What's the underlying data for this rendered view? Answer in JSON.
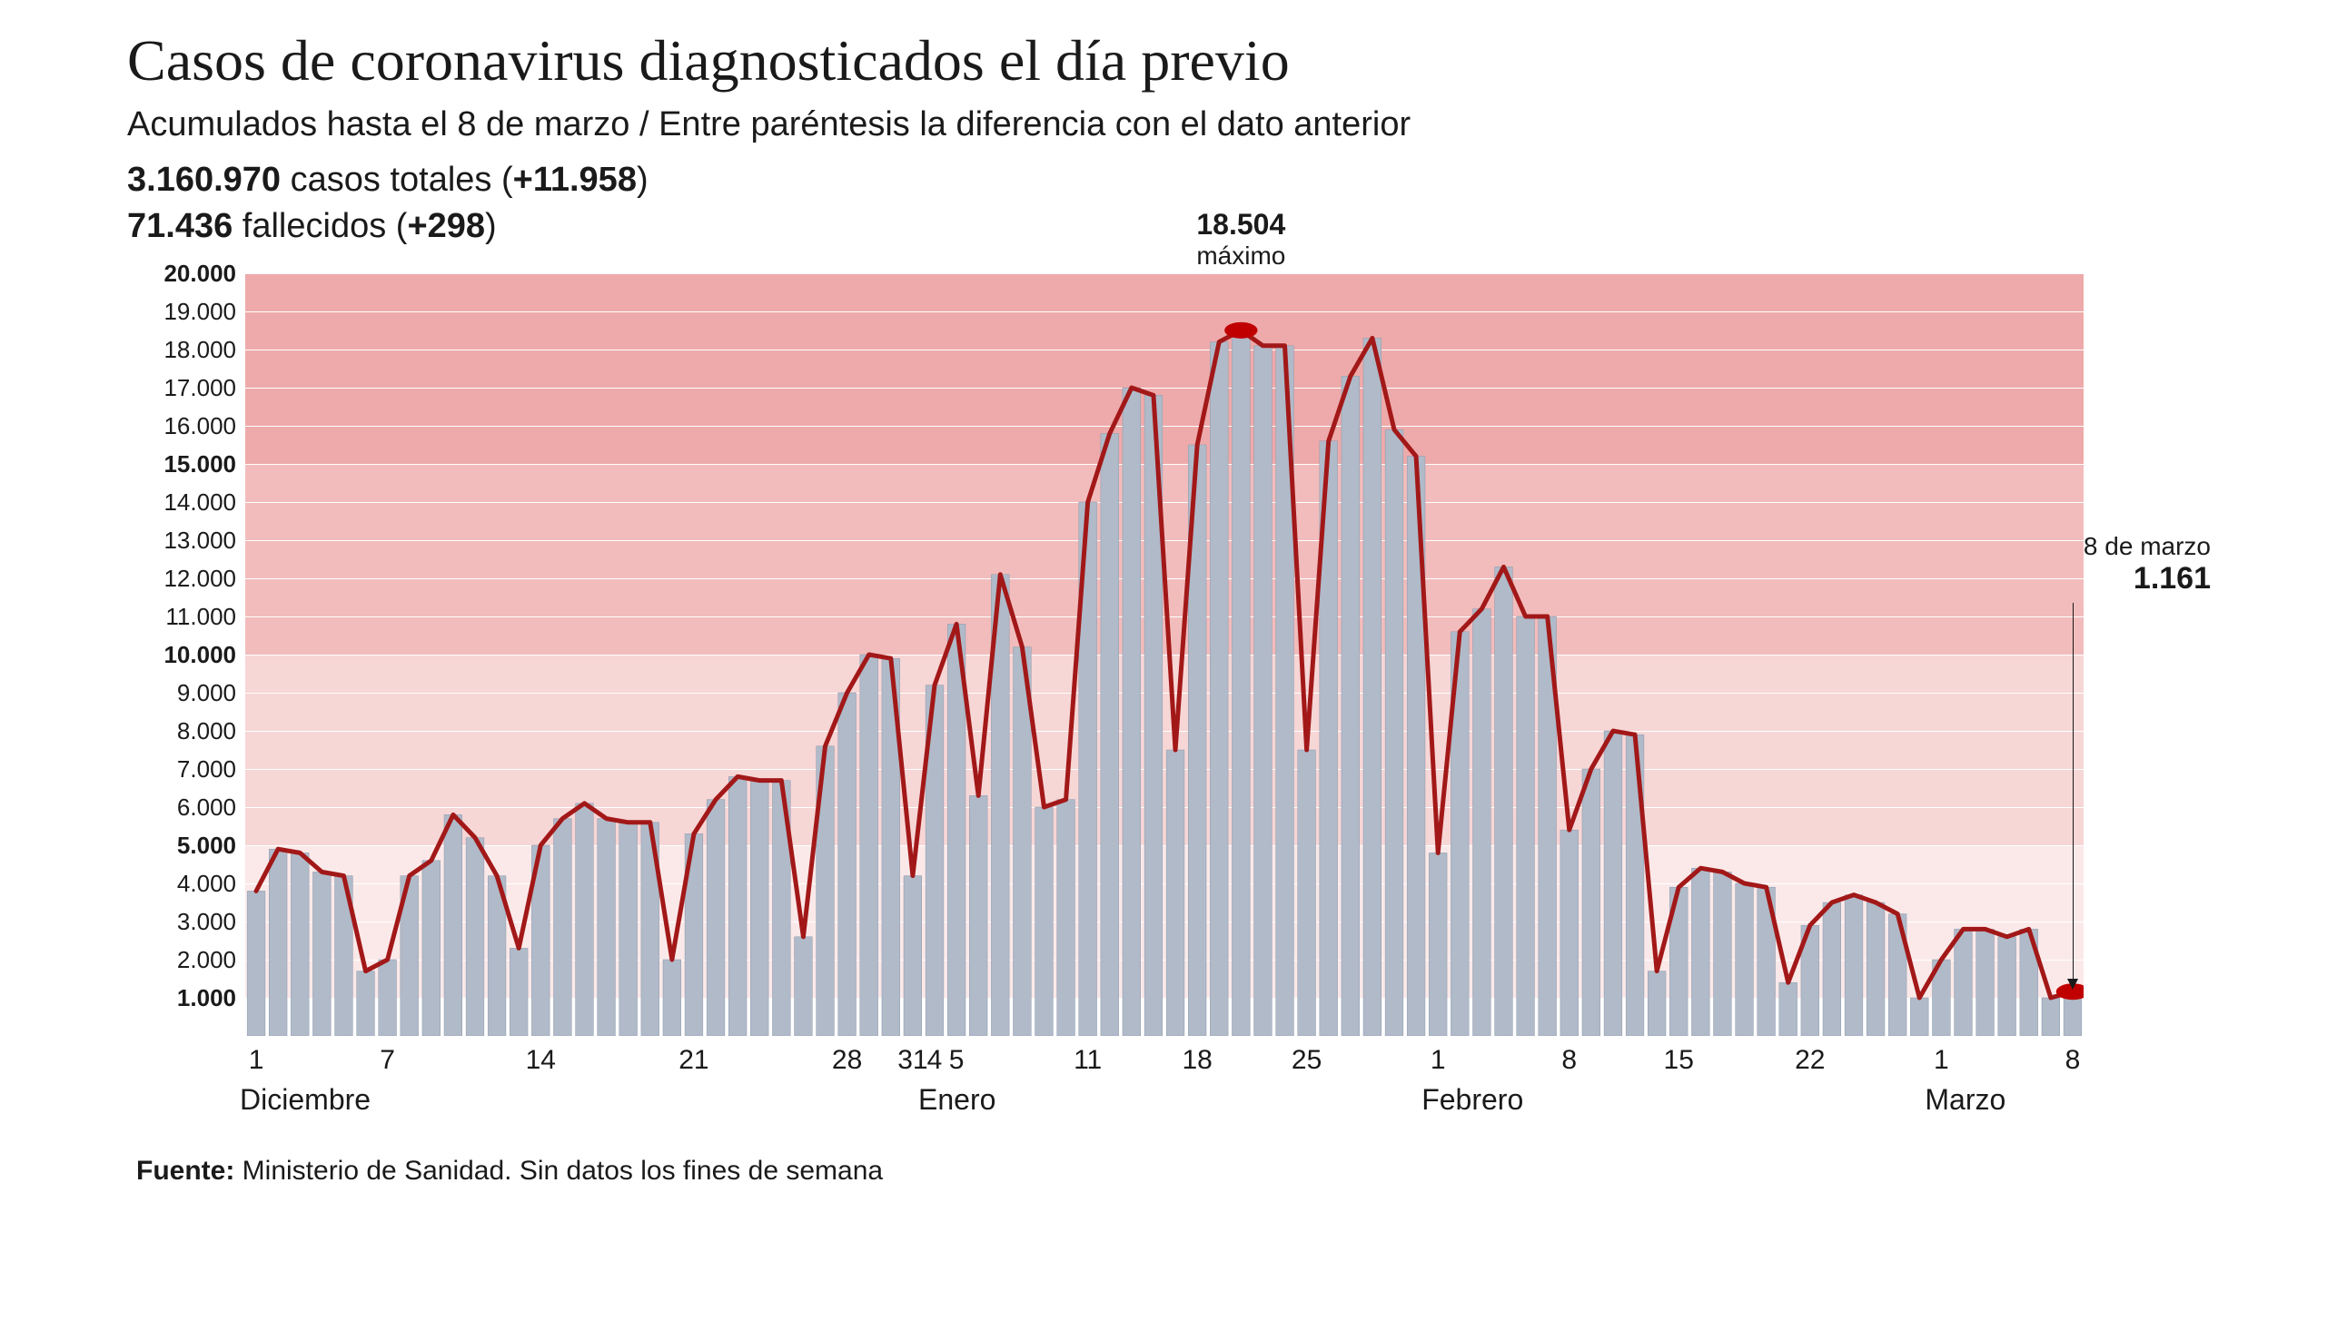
{
  "header": {
    "title": "Casos de coronavirus diagnosticados el día previo",
    "subtitle": "Acumulados hasta el 8 de marzo / Entre paréntesis la diferencia con el dato anterior",
    "cases_total": "3.160.970",
    "cases_label": " casos totales (",
    "cases_diff": "+11.958",
    "cases_close": ")",
    "deaths_total": "71.436",
    "deaths_label": " fallecidos (",
    "deaths_diff": "+298",
    "deaths_close": ")"
  },
  "chart": {
    "type": "bar+line",
    "ylim": [
      0,
      20000
    ],
    "y_ticks": [
      {
        "v": 20000,
        "label": "20.000",
        "bold": true
      },
      {
        "v": 19000,
        "label": "19.000",
        "bold": false
      },
      {
        "v": 18000,
        "label": "18.000",
        "bold": false
      },
      {
        "v": 17000,
        "label": "17.000",
        "bold": false
      },
      {
        "v": 16000,
        "label": "16.000",
        "bold": false
      },
      {
        "v": 15000,
        "label": "15.000",
        "bold": true
      },
      {
        "v": 14000,
        "label": "14.000",
        "bold": false
      },
      {
        "v": 13000,
        "label": "13.000",
        "bold": false
      },
      {
        "v": 12000,
        "label": "12.000",
        "bold": false
      },
      {
        "v": 11000,
        "label": "11.000",
        "bold": false
      },
      {
        "v": 10000,
        "label": "10.000",
        "bold": true
      },
      {
        "v": 9000,
        "label": "9.000",
        "bold": false
      },
      {
        "v": 8000,
        "label": "8.000",
        "bold": false
      },
      {
        "v": 7000,
        "label": "7.000",
        "bold": false
      },
      {
        "v": 6000,
        "label": "6.000",
        "bold": false
      },
      {
        "v": 5000,
        "label": "5.000",
        "bold": true
      },
      {
        "v": 4000,
        "label": "4.000",
        "bold": false
      },
      {
        "v": 3000,
        "label": "3.000",
        "bold": false
      },
      {
        "v": 2000,
        "label": "2.000",
        "bold": false
      },
      {
        "v": 1000,
        "label": "1.000",
        "bold": true
      }
    ],
    "bands": [
      {
        "from": 15000,
        "to": 20000,
        "color": "#eeaaaa"
      },
      {
        "from": 10000,
        "to": 15000,
        "color": "#f2bcbc"
      },
      {
        "from": 5000,
        "to": 10000,
        "color": "#f7d6d6"
      },
      {
        "from": 1000,
        "to": 5000,
        "color": "#fbe9e9"
      },
      {
        "from": 0,
        "to": 1000,
        "color": "#ffffff"
      }
    ],
    "gridline_color": "#ffffff",
    "bar_color": "#b0bac9",
    "bar_stroke": "#8e99ab",
    "line_color": "#a21818",
    "line_width": 5,
    "marker_color": "#c00000",
    "marker_radius": 9,
    "values": [
      3800,
      4900,
      4800,
      4300,
      4200,
      1700,
      2000,
      4200,
      4600,
      5800,
      5200,
      4200,
      2300,
      5000,
      5700,
      6100,
      5700,
      5600,
      5600,
      2000,
      5300,
      6200,
      6800,
      6700,
      6700,
      2600,
      7600,
      9000,
      10000,
      9900,
      4200,
      9200,
      10800,
      6300,
      12100,
      10200,
      6000,
      6200,
      14000,
      15800,
      17000,
      16800,
      7500,
      15500,
      18200,
      18504,
      18100,
      18100,
      7500,
      15600,
      17300,
      18300,
      15900,
      15200,
      4800,
      10600,
      11200,
      12300,
      11000,
      11000,
      5400,
      7000,
      8000,
      7900,
      1700,
      3900,
      4400,
      4300,
      4000,
      3900,
      1400,
      2900,
      3500,
      3700,
      3500,
      3200,
      1000,
      2000,
      2800,
      2800,
      2600,
      2800,
      1000,
      1161
    ],
    "x_ticks": [
      {
        "idx": 0,
        "label": "1"
      },
      {
        "idx": 6,
        "label": "7"
      },
      {
        "idx": 13,
        "label": "14"
      },
      {
        "idx": 20,
        "label": "21"
      },
      {
        "idx": 27,
        "label": "28"
      },
      {
        "idx": 30,
        "label": "31"
      },
      {
        "idx": 31,
        "label": "4"
      },
      {
        "idx": 32,
        "label": "5"
      },
      {
        "idx": 38,
        "label": "11"
      },
      {
        "idx": 43,
        "label": "18"
      },
      {
        "idx": 48,
        "label": "25"
      },
      {
        "idx": 54,
        "label": "1"
      },
      {
        "idx": 60,
        "label": "8"
      },
      {
        "idx": 65,
        "label": "15"
      },
      {
        "idx": 71,
        "label": "22"
      },
      {
        "idx": 77,
        "label": "1"
      },
      {
        "idx": 83,
        "label": "8"
      }
    ],
    "months": [
      {
        "idx": 0,
        "label": "Diciembre"
      },
      {
        "idx": 31,
        "label": "Enero"
      },
      {
        "idx": 54,
        "label": "Febrero"
      },
      {
        "idx": 77,
        "label": "Marzo"
      }
    ],
    "peak": {
      "idx": 45,
      "value_label": "18.504",
      "word": "máximo"
    },
    "end": {
      "idx": 83,
      "date_label": "8 de marzo",
      "value_label": "1.161"
    }
  },
  "source": {
    "label": "Fuente:",
    "text": " Ministerio de Sanidad. Sin datos los fines de semana"
  }
}
